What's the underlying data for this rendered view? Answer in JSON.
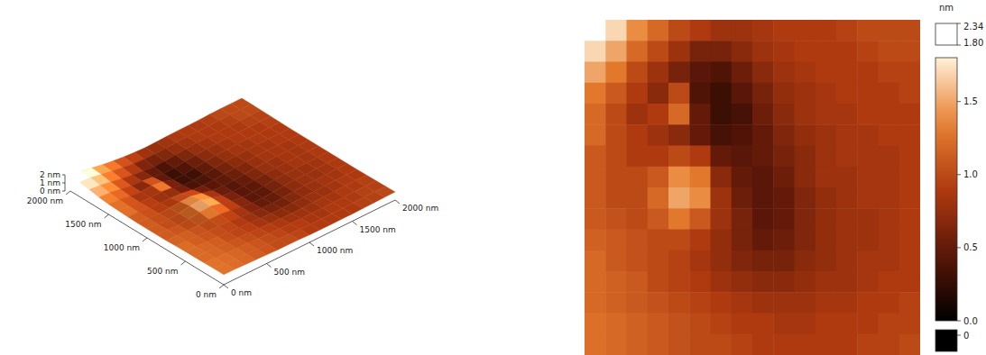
{
  "chart_data": [
    {
      "type": "surface",
      "xlim": [
        0,
        2000
      ],
      "ylim": [
        0,
        2000
      ],
      "zlim": [
        0,
        2
      ],
      "xticks": [
        {
          "value": 0,
          "label": "0 nm"
        },
        {
          "value": 500,
          "label": "500 nm"
        },
        {
          "value": 1000,
          "label": "1000 nm"
        },
        {
          "value": 1500,
          "label": "1500 nm"
        },
        {
          "value": 2000,
          "label": "2000 nm"
        }
      ],
      "yticks": [
        {
          "value": 0,
          "label": "0 nm"
        },
        {
          "value": 500,
          "label": "500 nm"
        },
        {
          "value": 1000,
          "label": "1000 nm"
        },
        {
          "value": 1500,
          "label": "1500 nm"
        },
        {
          "value": 2000,
          "label": "2000 nm"
        }
      ],
      "zticks": [
        {
          "value": 0,
          "label": "0 nm"
        },
        {
          "value": 1,
          "label": "1 nm"
        },
        {
          "value": 2,
          "label": "2 nm"
        }
      ],
      "cells": [
        [
          1.9,
          1.7,
          1.4,
          1.2,
          1.0,
          0.9,
          0.8,
          0.8,
          0.85,
          0.9,
          0.9,
          0.9,
          0.95,
          1.0,
          1.0,
          1.0
        ],
        [
          1.7,
          1.5,
          1.2,
          1.0,
          0.8,
          0.6,
          0.6,
          0.7,
          0.8,
          0.85,
          0.9,
          0.9,
          0.9,
          0.95,
          1.0,
          1.0
        ],
        [
          1.5,
          1.3,
          1.0,
          0.8,
          0.6,
          0.45,
          0.4,
          0.55,
          0.7,
          0.8,
          0.85,
          0.9,
          0.9,
          0.9,
          0.95,
          0.95
        ],
        [
          1.3,
          1.1,
          0.9,
          0.7,
          1.0,
          0.4,
          0.3,
          0.45,
          0.6,
          0.75,
          0.8,
          0.85,
          0.9,
          0.9,
          0.9,
          0.95
        ],
        [
          1.2,
          1.0,
          0.8,
          0.9,
          1.2,
          0.5,
          0.3,
          0.35,
          0.55,
          0.7,
          0.8,
          0.85,
          0.85,
          0.9,
          0.9,
          0.9
        ],
        [
          1.2,
          1.0,
          0.9,
          0.8,
          0.7,
          0.5,
          0.35,
          0.4,
          0.5,
          0.65,
          0.75,
          0.8,
          0.85,
          0.85,
          0.9,
          0.9
        ],
        [
          1.1,
          1.0,
          0.9,
          0.9,
          1.0,
          0.9,
          0.5,
          0.45,
          0.5,
          0.6,
          0.7,
          0.8,
          0.85,
          0.85,
          0.85,
          0.9
        ],
        [
          1.1,
          1.0,
          1.0,
          1.1,
          1.4,
          1.3,
          0.7,
          0.5,
          0.45,
          0.55,
          0.7,
          0.8,
          0.8,
          0.85,
          0.85,
          0.9
        ],
        [
          1.1,
          1.0,
          1.0,
          1.2,
          1.5,
          1.4,
          0.8,
          0.55,
          0.45,
          0.5,
          0.65,
          0.75,
          0.8,
          0.85,
          0.85,
          0.9
        ],
        [
          1.1,
          1.05,
          1.0,
          1.1,
          1.3,
          1.1,
          0.8,
          0.6,
          0.45,
          0.5,
          0.65,
          0.75,
          0.8,
          0.8,
          0.85,
          0.9
        ],
        [
          1.15,
          1.1,
          1.05,
          1.0,
          1.0,
          0.9,
          0.75,
          0.6,
          0.5,
          0.55,
          0.65,
          0.75,
          0.8,
          0.8,
          0.85,
          0.9
        ],
        [
          1.2,
          1.1,
          1.05,
          1.0,
          0.95,
          0.85,
          0.75,
          0.65,
          0.6,
          0.6,
          0.7,
          0.75,
          0.8,
          0.85,
          0.85,
          0.9
        ],
        [
          1.2,
          1.15,
          1.1,
          1.0,
          0.95,
          0.9,
          0.8,
          0.75,
          0.7,
          0.7,
          0.75,
          0.8,
          0.8,
          0.85,
          0.9,
          0.9
        ],
        [
          1.2,
          1.15,
          1.1,
          1.05,
          1.0,
          0.95,
          0.9,
          0.85,
          0.8,
          0.8,
          0.8,
          0.85,
          0.85,
          0.9,
          0.9,
          0.95
        ],
        [
          1.25,
          1.2,
          1.15,
          1.1,
          1.05,
          1.0,
          0.95,
          0.9,
          0.9,
          0.85,
          0.85,
          0.9,
          0.9,
          0.9,
          0.95,
          0.95
        ],
        [
          1.25,
          1.2,
          1.15,
          1.1,
          1.05,
          1.0,
          1.0,
          0.95,
          0.9,
          0.9,
          0.9,
          0.9,
          0.9,
          0.95,
          0.95,
          1.0
        ]
      ]
    },
    {
      "type": "heatmap",
      "tick_labels": false,
      "xlim": [
        0,
        2000
      ],
      "ylim": [
        0,
        2000
      ],
      "cells": [
        [
          1.9,
          1.7,
          1.4,
          1.2,
          1.0,
          0.9,
          0.8,
          0.8,
          0.85,
          0.9,
          0.9,
          0.9,
          0.95,
          1.0,
          1.0,
          1.0
        ],
        [
          1.7,
          1.5,
          1.2,
          1.0,
          0.8,
          0.6,
          0.6,
          0.7,
          0.8,
          0.85,
          0.9,
          0.9,
          0.9,
          0.95,
          1.0,
          1.0
        ],
        [
          1.5,
          1.3,
          1.0,
          0.8,
          0.6,
          0.45,
          0.4,
          0.55,
          0.7,
          0.8,
          0.85,
          0.9,
          0.9,
          0.9,
          0.95,
          0.95
        ],
        [
          1.3,
          1.1,
          0.9,
          0.7,
          1.0,
          0.4,
          0.3,
          0.45,
          0.6,
          0.75,
          0.8,
          0.85,
          0.9,
          0.9,
          0.9,
          0.95
        ],
        [
          1.2,
          1.0,
          0.8,
          0.9,
          1.2,
          0.5,
          0.3,
          0.35,
          0.55,
          0.7,
          0.8,
          0.85,
          0.85,
          0.9,
          0.9,
          0.9
        ],
        [
          1.2,
          1.0,
          0.9,
          0.8,
          0.7,
          0.5,
          0.35,
          0.4,
          0.5,
          0.65,
          0.75,
          0.8,
          0.85,
          0.85,
          0.9,
          0.9
        ],
        [
          1.1,
          1.0,
          0.9,
          0.9,
          1.0,
          0.9,
          0.5,
          0.45,
          0.5,
          0.6,
          0.7,
          0.8,
          0.85,
          0.85,
          0.85,
          0.9
        ],
        [
          1.1,
          1.0,
          1.0,
          1.1,
          1.4,
          1.3,
          0.7,
          0.5,
          0.45,
          0.55,
          0.7,
          0.8,
          0.8,
          0.85,
          0.85,
          0.9
        ],
        [
          1.1,
          1.0,
          1.0,
          1.2,
          1.5,
          1.4,
          0.8,
          0.55,
          0.45,
          0.5,
          0.65,
          0.75,
          0.8,
          0.85,
          0.85,
          0.9
        ],
        [
          1.1,
          1.05,
          1.0,
          1.1,
          1.3,
          1.1,
          0.8,
          0.6,
          0.45,
          0.5,
          0.65,
          0.75,
          0.8,
          0.8,
          0.85,
          0.9
        ],
        [
          1.15,
          1.1,
          1.05,
          1.0,
          1.0,
          0.9,
          0.75,
          0.6,
          0.5,
          0.55,
          0.65,
          0.75,
          0.8,
          0.8,
          0.85,
          0.9
        ],
        [
          1.2,
          1.1,
          1.05,
          1.0,
          0.95,
          0.85,
          0.75,
          0.65,
          0.6,
          0.6,
          0.7,
          0.75,
          0.8,
          0.85,
          0.85,
          0.9
        ],
        [
          1.2,
          1.15,
          1.1,
          1.0,
          0.95,
          0.9,
          0.8,
          0.75,
          0.7,
          0.7,
          0.75,
          0.8,
          0.8,
          0.85,
          0.9,
          0.9
        ],
        [
          1.2,
          1.15,
          1.1,
          1.05,
          1.0,
          0.95,
          0.9,
          0.85,
          0.8,
          0.8,
          0.8,
          0.85,
          0.85,
          0.9,
          0.9,
          0.95
        ],
        [
          1.25,
          1.2,
          1.15,
          1.1,
          1.05,
          1.0,
          0.95,
          0.9,
          0.9,
          0.85,
          0.85,
          0.9,
          0.9,
          0.9,
          0.95,
          0.95
        ],
        [
          1.25,
          1.2,
          1.15,
          1.1,
          1.05,
          1.0,
          1.0,
          0.95,
          0.9,
          0.9,
          0.9,
          0.9,
          0.9,
          0.95,
          0.95,
          1.0
        ]
      ],
      "colorbar": {
        "label": "nm",
        "range": [
          0,
          1.8
        ],
        "ticks": [
          {
            "value": 0,
            "label": "0.0"
          },
          {
            "value": 0.5,
            "label": "0.5"
          },
          {
            "value": 1,
            "label": "1.0"
          },
          {
            "value": 1.5,
            "label": "1.5"
          }
        ],
        "over": {
          "range": [
            1.8,
            2.34
          ],
          "ticks": [
            {
              "value": 2.34,
              "label": "2.34"
            },
            {
              "value": 1.8,
              "label": "1.80"
            }
          ]
        },
        "under": {
          "ticks": [
            0
          ]
        }
      }
    }
  ]
}
